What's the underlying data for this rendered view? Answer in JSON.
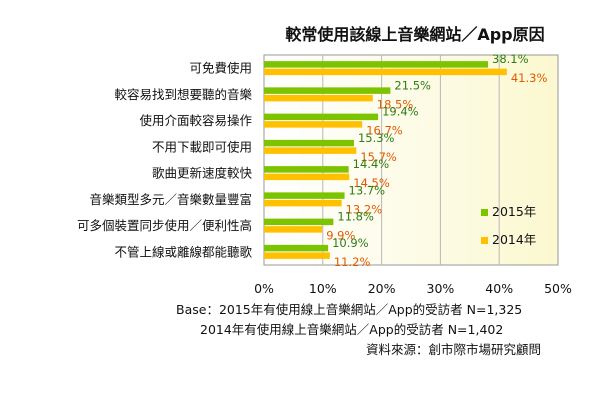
{
  "chart_data": {
    "type": "bar",
    "orientation": "horizontal",
    "title": "較常使用該線上音樂網站／App原因",
    "categories": [
      "可免費使用",
      "較容易找到想要聽的音樂",
      "使用介面較容易操作",
      "不用下載即可使用",
      "歌曲更新速度較快",
      "音樂類型多元／音樂數量豐富",
      "可多個裝置同步使用／便利性高",
      "不管上線或離線都能聽歌"
    ],
    "series": [
      {
        "name": "2015年",
        "color": "#7cc400",
        "values": [
          38.1,
          21.5,
          19.4,
          15.3,
          14.4,
          13.7,
          11.8,
          10.9
        ],
        "labels": [
          "38.1%",
          "21.5%",
          "19.4%",
          "15.3%",
          "14.4%",
          "13.7%",
          "11.8%",
          "10.9%"
        ]
      },
      {
        "name": "2014年",
        "color": "#ffc000",
        "values": [
          41.3,
          18.5,
          16.7,
          15.7,
          14.5,
          13.2,
          9.9,
          11.2
        ],
        "labels": [
          "41.3%",
          "18.5%",
          "16.7%",
          "15.7%",
          "14.5%",
          "13.2%",
          "9.9%",
          "11.2%"
        ]
      }
    ],
    "xlim": [
      0,
      50
    ],
    "ticks": [
      0,
      10,
      20,
      30,
      40,
      50
    ],
    "tick_labels": [
      "0%",
      "10%",
      "20%",
      "30%",
      "40%",
      "50%"
    ],
    "grid": true,
    "legend": "right"
  },
  "footnotes": {
    "base_2015": "Base：2015年有使用線上音樂網站／App的受訪者 N=1,325",
    "base_2014": "2014年有使用線上音樂網站／App的受訪者 N=1,402",
    "source": "資料來源：創市際市場研究顧問"
  }
}
